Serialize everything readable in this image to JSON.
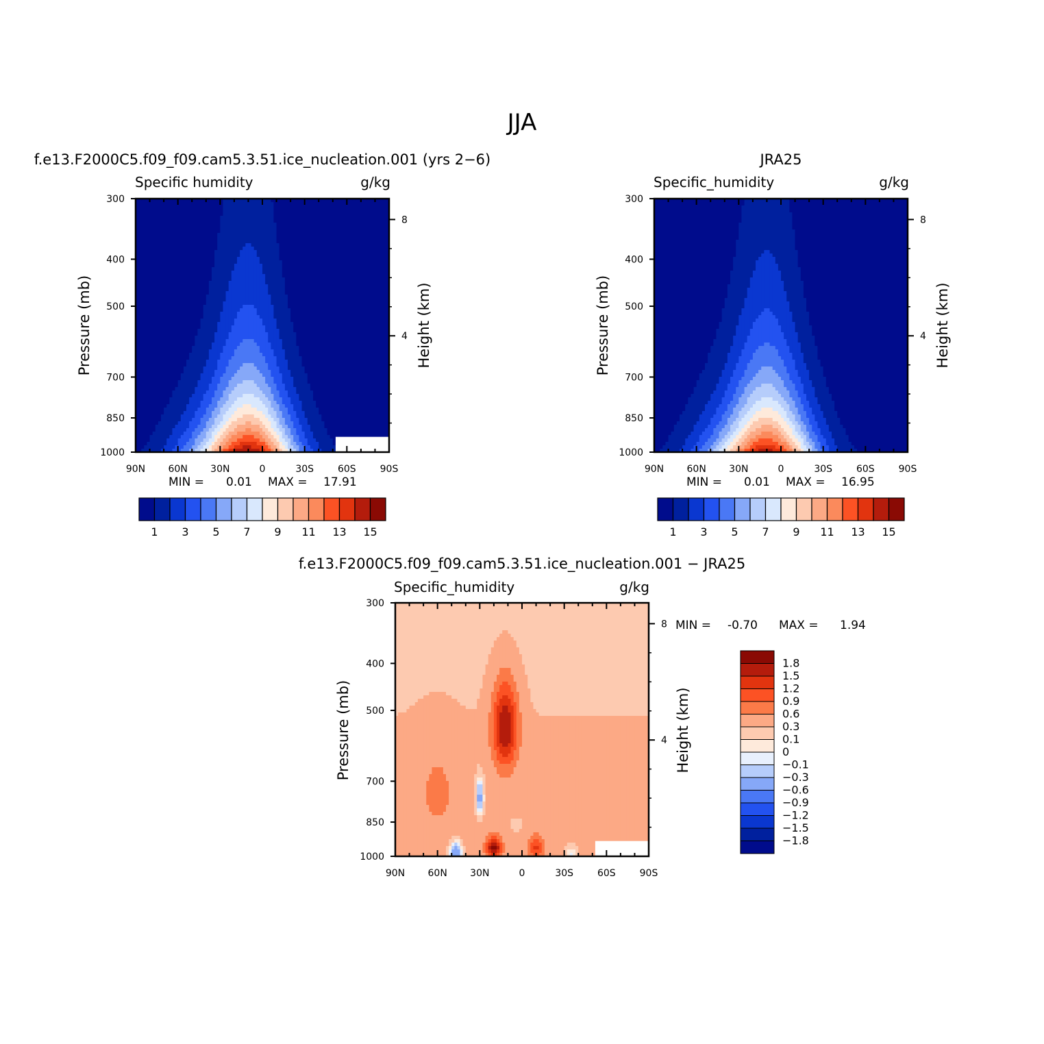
{
  "figure": {
    "title": "JJA",
    "difference_stats": {
      "min_label": "MIN =",
      "min": "-0.70",
      "max_label": "MAX =",
      "max": "1.94"
    }
  },
  "chart_data": [
    {
      "type": "contour",
      "title": "f.e13.F2000C5.f09_f09.cam5.3.51.ice_nucleation.001 (yrs 2−6)",
      "variable": "Specific humidity",
      "units": "g/kg",
      "xlabel": "",
      "ylabel": "Pressure (mb)",
      "y2label": "Height (km)",
      "x_ticks": [
        "90N",
        "60N",
        "30N",
        "0",
        "30S",
        "60S",
        "90S"
      ],
      "x_range": [
        90,
        -90
      ],
      "y_ticks": [
        "300",
        "400",
        "500",
        "700",
        "850",
        "1000"
      ],
      "y_range": [
        300,
        1000
      ],
      "height_ticks": [
        "8",
        "4"
      ],
      "stats": {
        "min_label": "MIN =",
        "min": "0.01",
        "max_label": "MAX =",
        "max": "17.91"
      },
      "colorbar_labels": [
        "1",
        "3",
        "5",
        "7",
        "9",
        "11",
        "13",
        "15"
      ],
      "colors": [
        "#000c8c",
        "#00209e",
        "#0a37d0",
        "#2352f0",
        "#4a78f5",
        "#86a8f8",
        "#b6cdfb",
        "#d9e8fd",
        "#feeadb",
        "#fdcab0",
        "#fca985",
        "#fb8a5c",
        "#fc5224",
        "#e2340f",
        "#b41c0c",
        "#8a0a04"
      ],
      "peak_level": 14.6,
      "peak_lat": 10
    },
    {
      "type": "contour",
      "title": "JRA25",
      "variable": "Specific_humidity",
      "units": "g/kg",
      "xlabel": "",
      "ylabel": "Pressure (mb)",
      "y2label": "Height (km)",
      "x_ticks": [
        "90N",
        "60N",
        "30N",
        "0",
        "30S",
        "60S",
        "90S"
      ],
      "x_range": [
        90,
        -90
      ],
      "y_ticks": [
        "300",
        "400",
        "500",
        "700",
        "850",
        "1000"
      ],
      "y_range": [
        300,
        1000
      ],
      "height_ticks": [
        "8",
        "4"
      ],
      "stats": {
        "min_label": "MIN =",
        "min": "0.01",
        "max_label": "MAX =",
        "max": "16.95"
      },
      "colorbar_labels": [
        "1",
        "3",
        "5",
        "7",
        "9",
        "11",
        "13",
        "15"
      ],
      "colors": [
        "#000c8c",
        "#00209e",
        "#0a37d0",
        "#2352f0",
        "#4a78f5",
        "#86a8f8",
        "#b6cdfb",
        "#d9e8fd",
        "#feeadb",
        "#fdcab0",
        "#fca985",
        "#fb8a5c",
        "#fc5224",
        "#e2340f",
        "#b41c0c",
        "#8a0a04"
      ],
      "peak_level": 14.0,
      "peak_lat": 10
    },
    {
      "type": "contour",
      "title": "f.e13.F2000C5.f09_f09.cam5.3.51.ice_nucleation.001 − JRA25",
      "variable": "Specific_humidity",
      "units": "g/kg",
      "xlabel": "",
      "ylabel": "Pressure (mb)",
      "y2label": "Height (km)",
      "x_ticks": [
        "90N",
        "60N",
        "30N",
        "0",
        "30S",
        "60S",
        "90S"
      ],
      "x_range": [
        90,
        -90
      ],
      "y_ticks": [
        "300",
        "400",
        "500",
        "700",
        "850",
        "1000"
      ],
      "y_range": [
        300,
        1000
      ],
      "height_ticks": [
        "8",
        "4"
      ],
      "colorbar_labels": [
        "1.8",
        "1.5",
        "1.2",
        "0.9",
        "0.6",
        "0.3",
        "0.1",
        "0",
        "−0.1",
        "−0.3",
        "−0.6",
        "−0.9",
        "−1.2",
        "−1.5",
        "−1.8"
      ],
      "colors": [
        "#8a0a04",
        "#b41c0c",
        "#e2340f",
        "#fc5224",
        "#fb7a48",
        "#fca985",
        "#fdcab0",
        "#feeadb",
        "#e8f0fd",
        "#b6cdfb",
        "#86a8f8",
        "#4a78f5",
        "#2352f0",
        "#0a37d0",
        "#00209e",
        "#000c8c"
      ]
    }
  ]
}
